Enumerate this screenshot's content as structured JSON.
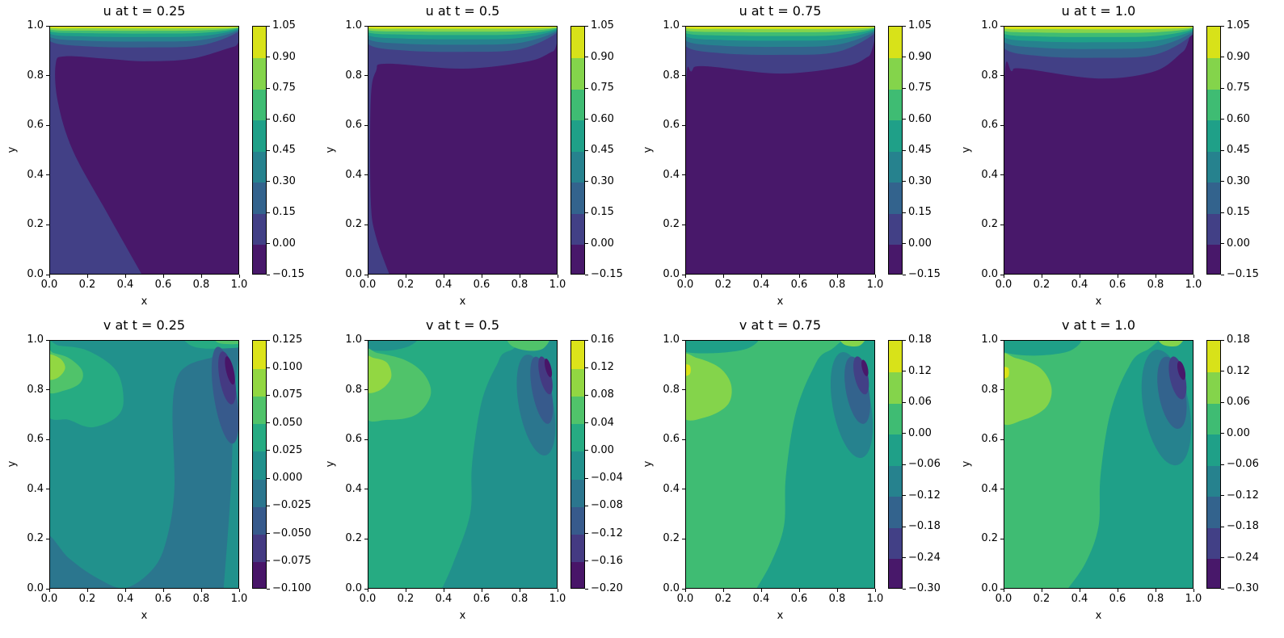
{
  "chart_data": [
    {
      "type": "contour",
      "title": "u at t = 0.25",
      "xlabel": "x",
      "ylabel": "y",
      "xlim": [
        0,
        1
      ],
      "ylim": [
        0,
        1
      ],
      "xticks": [
        "0.0",
        "0.2",
        "0.4",
        "0.6",
        "0.8",
        "1.0"
      ],
      "yticks": [
        "0.0",
        "0.2",
        "0.4",
        "0.6",
        "0.8",
        "1.0"
      ],
      "colormap": "viridis",
      "levels": [
        "−0.15",
        "0.00",
        "0.15",
        "0.30",
        "0.45",
        "0.60",
        "0.75",
        "0.90",
        "1.05"
      ]
    },
    {
      "type": "contour",
      "title": "u at t = 0.5",
      "xlabel": "x",
      "ylabel": "y",
      "xlim": [
        0,
        1
      ],
      "ylim": [
        0,
        1
      ],
      "xticks": [
        "0.0",
        "0.2",
        "0.4",
        "0.6",
        "0.8",
        "1.0"
      ],
      "yticks": [
        "0.0",
        "0.2",
        "0.4",
        "0.6",
        "0.8",
        "1.0"
      ],
      "colormap": "viridis",
      "levels": [
        "−0.15",
        "0.00",
        "0.15",
        "0.30",
        "0.45",
        "0.60",
        "0.75",
        "0.90",
        "1.05"
      ]
    },
    {
      "type": "contour",
      "title": "u at t = 0.75",
      "xlabel": "x",
      "ylabel": "y",
      "xlim": [
        0,
        1
      ],
      "ylim": [
        0,
        1
      ],
      "xticks": [
        "0.0",
        "0.2",
        "0.4",
        "0.6",
        "0.8",
        "1.0"
      ],
      "yticks": [
        "0.0",
        "0.2",
        "0.4",
        "0.6",
        "0.8",
        "1.0"
      ],
      "colormap": "viridis",
      "levels": [
        "−0.15",
        "0.00",
        "0.15",
        "0.30",
        "0.45",
        "0.60",
        "0.75",
        "0.90",
        "1.05"
      ]
    },
    {
      "type": "contour",
      "title": "u at t = 1.0",
      "xlabel": "x",
      "ylabel": "y",
      "xlim": [
        0,
        1
      ],
      "ylim": [
        0,
        1
      ],
      "xticks": [
        "0.0",
        "0.2",
        "0.4",
        "0.6",
        "0.8",
        "1.0"
      ],
      "yticks": [
        "0.0",
        "0.2",
        "0.4",
        "0.6",
        "0.8",
        "1.0"
      ],
      "colormap": "viridis",
      "levels": [
        "−0.15",
        "0.00",
        "0.15",
        "0.30",
        "0.45",
        "0.60",
        "0.75",
        "0.90",
        "1.05"
      ]
    },
    {
      "type": "contour",
      "title": "v at t = 0.25",
      "xlabel": "x",
      "ylabel": "y",
      "xlim": [
        0,
        1
      ],
      "ylim": [
        0,
        1
      ],
      "xticks": [
        "0.0",
        "0.2",
        "0.4",
        "0.6",
        "0.8",
        "1.0"
      ],
      "yticks": [
        "0.0",
        "0.2",
        "0.4",
        "0.6",
        "0.8",
        "1.0"
      ],
      "colormap": "viridis",
      "levels": [
        "−0.100",
        "−0.075",
        "−0.050",
        "−0.025",
        "0.000",
        "0.025",
        "0.050",
        "0.075",
        "0.100",
        "0.125"
      ]
    },
    {
      "type": "contour",
      "title": "v at t = 0.5",
      "xlabel": "x",
      "ylabel": "y",
      "xlim": [
        0,
        1
      ],
      "ylim": [
        0,
        1
      ],
      "xticks": [
        "0.0",
        "0.2",
        "0.4",
        "0.6",
        "0.8",
        "1.0"
      ],
      "yticks": [
        "0.0",
        "0.2",
        "0.4",
        "0.6",
        "0.8",
        "1.0"
      ],
      "colormap": "viridis",
      "levels": [
        "−0.20",
        "−0.16",
        "−0.12",
        "−0.08",
        "−0.04",
        "0.00",
        "0.04",
        "0.08",
        "0.12",
        "0.16"
      ]
    },
    {
      "type": "contour",
      "title": "v at t = 0.75",
      "xlabel": "x",
      "ylabel": "y",
      "xlim": [
        0,
        1
      ],
      "ylim": [
        0,
        1
      ],
      "xticks": [
        "0.0",
        "0.2",
        "0.4",
        "0.6",
        "0.8",
        "1.0"
      ],
      "yticks": [
        "0.0",
        "0.2",
        "0.4",
        "0.6",
        "0.8",
        "1.0"
      ],
      "colormap": "viridis",
      "levels": [
        "−0.30",
        "−0.24",
        "−0.18",
        "−0.12",
        "−0.06",
        "0.00",
        "0.06",
        "0.12",
        "0.18"
      ]
    },
    {
      "type": "contour",
      "title": "v at t = 1.0",
      "xlabel": "x",
      "ylabel": "y",
      "xlim": [
        0,
        1
      ],
      "ylim": [
        0,
        1
      ],
      "xticks": [
        "0.0",
        "0.2",
        "0.4",
        "0.6",
        "0.8",
        "1.0"
      ],
      "yticks": [
        "0.0",
        "0.2",
        "0.4",
        "0.6",
        "0.8",
        "1.0"
      ],
      "colormap": "viridis",
      "levels": [
        "−0.30",
        "−0.24",
        "−0.18",
        "−0.12",
        "−0.06",
        "0.00",
        "0.06",
        "0.12",
        "0.18"
      ]
    }
  ]
}
